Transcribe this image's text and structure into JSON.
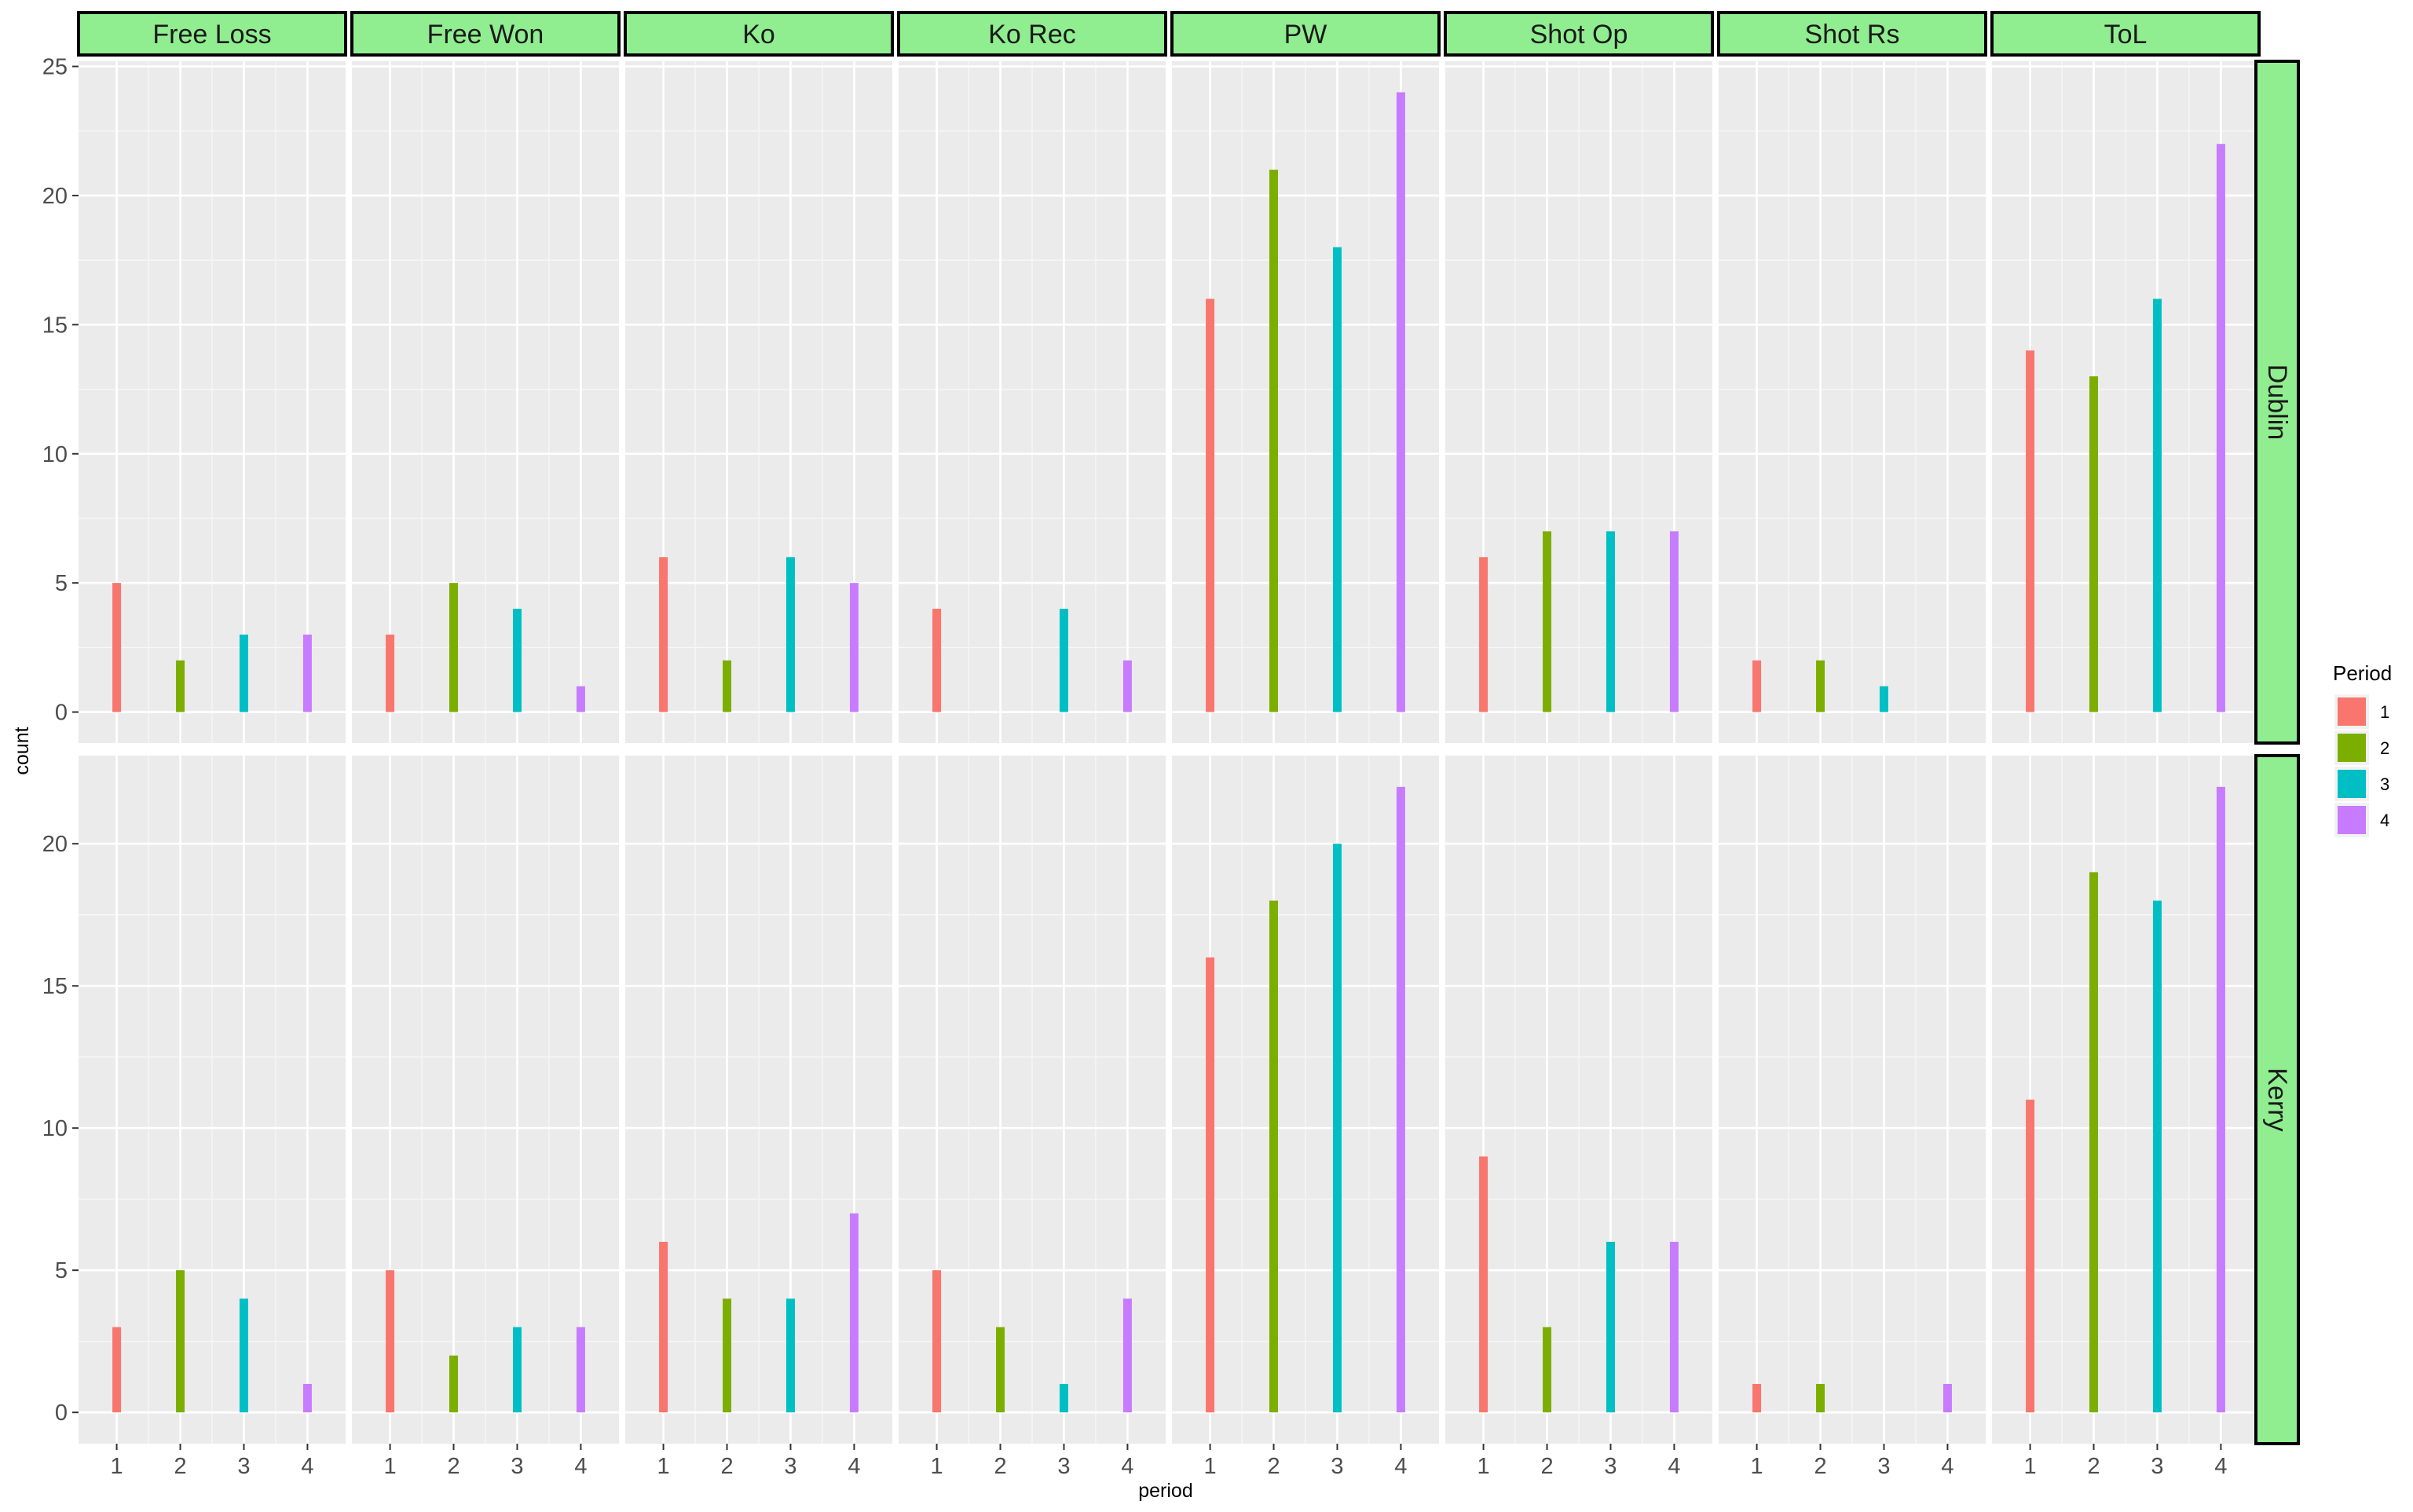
{
  "chart_data": {
    "type": "bar",
    "facet_columns": [
      "Free Loss",
      "Free Won",
      "Ko",
      "Ko Rec",
      "PW",
      "Shot Op",
      "Shot Rs",
      "ToL"
    ],
    "facet_rows": [
      "Dublin",
      "Kerry"
    ],
    "x": [
      1,
      2,
      3,
      4
    ],
    "x_tick_labels": [
      "1",
      "2",
      "3",
      "4"
    ],
    "xlabel": "period",
    "ylabel": "count",
    "ylim_dublin": [
      -1.2,
      25.2
    ],
    "yticks_dublin": [
      0,
      5,
      10,
      15,
      20,
      25
    ],
    "ylim_kerry": [
      -1.1,
      23.1
    ],
    "yticks_kerry": [
      0,
      5,
      10,
      15,
      20
    ],
    "legend": {
      "title": "Period",
      "labels": [
        "1",
        "2",
        "3",
        "4"
      ],
      "position": "right"
    },
    "colors": [
      "#F8766D",
      "#7CAE00",
      "#00BFC4",
      "#C77CFF"
    ],
    "panel_bg": "#EBEBEB",
    "strip_fill": "#90EE90",
    "values": {
      "Dublin": {
        "Free Loss": [
          5,
          2,
          3,
          3
        ],
        "Free Won": [
          3,
          5,
          4,
          1
        ],
        "Ko": [
          6,
          2,
          6,
          5
        ],
        "Ko Rec": [
          4,
          0,
          4,
          2
        ],
        "PW": [
          16,
          21,
          18,
          24
        ],
        "Shot Op": [
          6,
          7,
          7,
          7
        ],
        "Shot Rs": [
          2,
          2,
          1,
          0
        ],
        "ToL": [
          14,
          13,
          16,
          22
        ]
      },
      "Kerry": {
        "Free Loss": [
          3,
          5,
          4,
          1
        ],
        "Free Won": [
          5,
          2,
          3,
          3
        ],
        "Ko": [
          6,
          4,
          4,
          7
        ],
        "Ko Rec": [
          5,
          3,
          1,
          4
        ],
        "PW": [
          16,
          18,
          20,
          22
        ],
        "Shot Op": [
          9,
          3,
          6,
          6
        ],
        "Shot Rs": [
          1,
          1,
          0,
          1
        ],
        "ToL": [
          11,
          19,
          18,
          22
        ]
      }
    }
  }
}
